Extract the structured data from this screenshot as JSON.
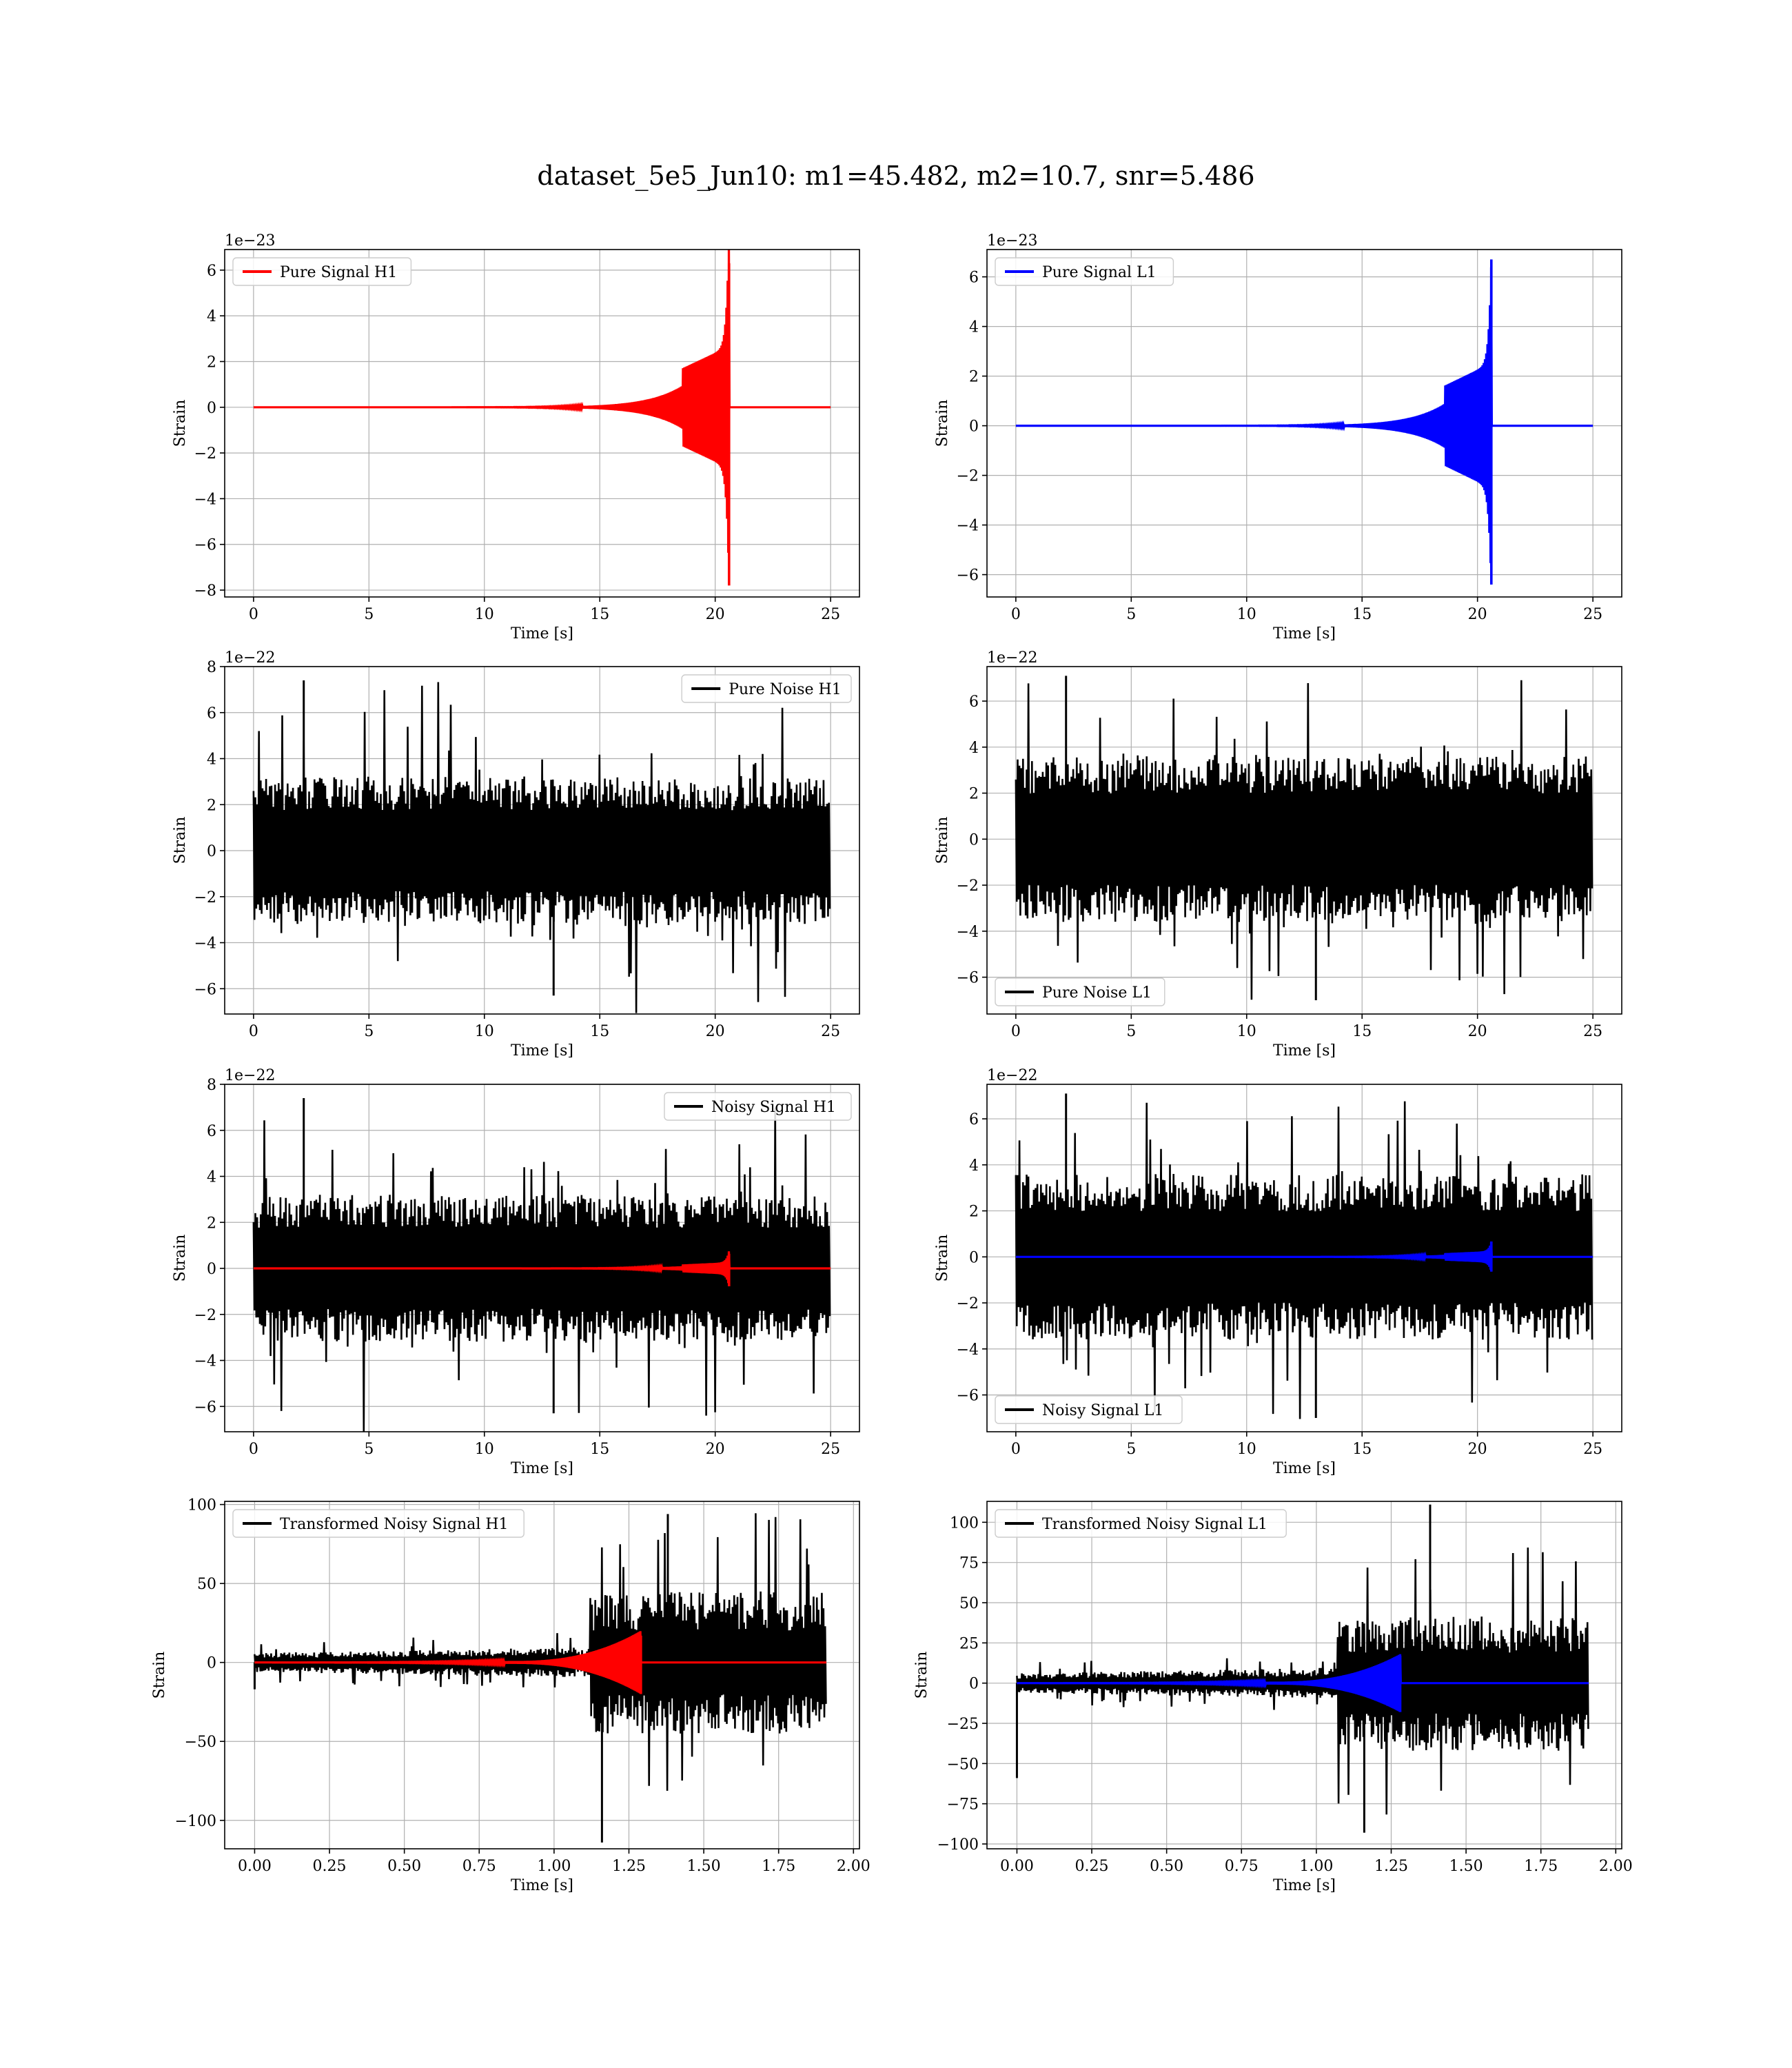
{
  "figure": {
    "title": "dataset_5e5_Jun10: m1=45.482, m2=10.7, snr=5.486"
  },
  "colors": {
    "h1_signal": "#ff0000",
    "l1_signal": "#0000ff",
    "noise": "#000000"
  },
  "chart_data": [
    {
      "id": "pure-signal-h1",
      "type": "line",
      "kind": "chirp",
      "xlabel": "Time [s]",
      "ylabel": "Strain",
      "offset_label": "1e−23",
      "xlim": [
        -1.25,
        26.25
      ],
      "ylim": [
        -8.3,
        6.9
      ],
      "xticks": [
        0,
        5,
        10,
        15,
        20,
        25
      ],
      "xtick_labels": [
        "0",
        "5",
        "10",
        "15",
        "20",
        "25"
      ],
      "yticks": [
        -8,
        -6,
        -4,
        -2,
        0,
        2,
        4,
        6
      ],
      "ytick_labels": [
        "−8",
        "−6",
        "−4",
        "−2",
        "0",
        "2",
        "4",
        "6"
      ],
      "legend": {
        "position": "upper-left",
        "label": "Pure Signal H1"
      },
      "series": [
        {
          "name": "Pure Signal H1",
          "color": "#ff0000",
          "x_range": [
            0,
            25
          ],
          "merger_time": 20.6,
          "peak_max": 6.3,
          "peak_min": -7.8,
          "plateau_amplitude": 1.9,
          "plateau_start": 18.6
        }
      ]
    },
    {
      "id": "pure-signal-l1",
      "type": "line",
      "kind": "chirp",
      "xlabel": "Time [s]",
      "ylabel": "Strain",
      "offset_label": "1e−23",
      "xlim": [
        -1.25,
        26.25
      ],
      "ylim": [
        -6.9,
        7.1
      ],
      "xticks": [
        0,
        5,
        10,
        15,
        20,
        25
      ],
      "xtick_labels": [
        "0",
        "5",
        "10",
        "15",
        "20",
        "25"
      ],
      "yticks": [
        -6,
        -4,
        -2,
        0,
        2,
        4,
        6
      ],
      "ytick_labels": [
        "−6",
        "−4",
        "−2",
        "0",
        "2",
        "4",
        "6"
      ],
      "legend": {
        "position": "upper-left",
        "label": "Pure Signal L1"
      },
      "series": [
        {
          "name": "Pure Signal L1",
          "color": "#0000ff",
          "x_range": [
            0,
            25
          ],
          "merger_time": 20.6,
          "peak_max": 6.7,
          "peak_min": -6.4,
          "plateau_amplitude": 1.8,
          "plateau_start": 18.6
        }
      ]
    },
    {
      "id": "pure-noise-h1",
      "type": "line",
      "kind": "noise",
      "xlabel": "Time [s]",
      "ylabel": "Strain",
      "offset_label": "1e−22",
      "xlim": [
        -1.25,
        26.25
      ],
      "ylim": [
        -7.1,
        8.0
      ],
      "xticks": [
        0,
        5,
        10,
        15,
        20,
        25
      ],
      "xtick_labels": [
        "0",
        "5",
        "10",
        "15",
        "20",
        "25"
      ],
      "yticks": [
        -6,
        -4,
        -2,
        0,
        2,
        4,
        6,
        8
      ],
      "ytick_labels": [
        "−6",
        "−4",
        "−2",
        "0",
        "2",
        "4",
        "6",
        "8"
      ],
      "legend": {
        "position": "upper-right",
        "label": "Pure Noise H1"
      },
      "series": [
        {
          "name": "Pure Noise H1",
          "color": "#000000",
          "x_range": [
            0,
            25
          ],
          "band": 3.2,
          "max": 7.4,
          "min": -6.3
        }
      ]
    },
    {
      "id": "pure-noise-l1",
      "type": "line",
      "kind": "noise",
      "xlabel": "Time [s]",
      "ylabel": "Strain",
      "offset_label": "1e−22",
      "xlim": [
        -1.25,
        26.25
      ],
      "ylim": [
        -7.6,
        7.5
      ],
      "xticks": [
        0,
        5,
        10,
        15,
        20,
        25
      ],
      "xtick_labels": [
        "0",
        "5",
        "10",
        "15",
        "20",
        "25"
      ],
      "yticks": [
        -6,
        -4,
        -2,
        0,
        2,
        4,
        6
      ],
      "ytick_labels": [
        "−6",
        "−4",
        "−2",
        "0",
        "2",
        "4",
        "6"
      ],
      "legend": {
        "position": "lower-left",
        "label": "Pure Noise L1"
      },
      "series": [
        {
          "name": "Pure Noise L1",
          "color": "#000000",
          "x_range": [
            0,
            25
          ],
          "band": 3.6,
          "max": 7.1,
          "min": -7.0
        }
      ]
    },
    {
      "id": "noisy-signal-h1",
      "type": "line",
      "kind": "noise+chirp",
      "xlabel": "Time [s]",
      "ylabel": "Strain",
      "offset_label": "1e−22",
      "xlim": [
        -1.25,
        26.25
      ],
      "ylim": [
        -7.1,
        8.0
      ],
      "xticks": [
        0,
        5,
        10,
        15,
        20,
        25
      ],
      "xtick_labels": [
        "0",
        "5",
        "10",
        "15",
        "20",
        "25"
      ],
      "yticks": [
        -6,
        -4,
        -2,
        0,
        2,
        4,
        6,
        8
      ],
      "ytick_labels": [
        "−6",
        "−4",
        "−2",
        "0",
        "2",
        "4",
        "6",
        "8"
      ],
      "legend": {
        "position": "upper-right",
        "label": "Noisy Signal H1"
      },
      "series": [
        {
          "name": "Noisy Signal H1",
          "color": "#000000",
          "x_range": [
            0,
            25
          ],
          "band": 3.2,
          "max": 7.4,
          "min": -6.3
        },
        {
          "color": "#ff0000",
          "x_range": [
            0,
            25
          ],
          "merger_time": 20.6,
          "peak_max": 0.63,
          "peak_min": -0.78,
          "plateau_amplitude": 0.19,
          "plateau_start": 18.6
        }
      ]
    },
    {
      "id": "noisy-signal-l1",
      "type": "line",
      "kind": "noise+chirp",
      "xlabel": "Time [s]",
      "ylabel": "Strain",
      "offset_label": "1e−22",
      "xlim": [
        -1.25,
        26.25
      ],
      "ylim": [
        -7.6,
        7.5
      ],
      "xticks": [
        0,
        5,
        10,
        15,
        20,
        25
      ],
      "xtick_labels": [
        "0",
        "5",
        "10",
        "15",
        "20",
        "25"
      ],
      "yticks": [
        -6,
        -4,
        -2,
        0,
        2,
        4,
        6
      ],
      "ytick_labels": [
        "−6",
        "−4",
        "−2",
        "0",
        "2",
        "4",
        "6"
      ],
      "legend": {
        "position": "lower-left",
        "label": "Noisy Signal L1"
      },
      "series": [
        {
          "name": "Noisy Signal L1",
          "color": "#000000",
          "x_range": [
            0,
            25
          ],
          "band": 3.6,
          "max": 7.1,
          "min": -7.0
        },
        {
          "color": "#0000ff",
          "x_range": [
            0,
            25
          ],
          "merger_time": 20.6,
          "peak_max": 0.67,
          "peak_min": -0.64,
          "plateau_amplitude": 0.18,
          "plateau_start": 18.6
        }
      ]
    },
    {
      "id": "transformed-noisy-signal-h1",
      "type": "line",
      "kind": "whitened",
      "xlabel": "Time [s]",
      "ylabel": "Strain",
      "offset_label": "",
      "xlim": [
        -0.1,
        2.02
      ],
      "ylim": [
        -118,
        102
      ],
      "xticks": [
        0,
        0.25,
        0.5,
        0.75,
        1.0,
        1.25,
        1.5,
        1.75,
        2.0
      ],
      "xtick_labels": [
        "0.00",
        "0.25",
        "0.50",
        "0.75",
        "1.00",
        "1.25",
        "1.50",
        "1.75",
        "2.00"
      ],
      "yticks": [
        -100,
        -50,
        0,
        50,
        100
      ],
      "ytick_labels": [
        "−100",
        "−50",
        "0",
        "50",
        "100"
      ],
      "legend": {
        "position": "upper-left",
        "label": "Transformed Noisy Signal H1"
      },
      "series": [
        {
          "name": "Transformed Noisy Signal H1",
          "color": "#000000",
          "x_range": [
            0,
            1.91
          ],
          "quiet_band": 6,
          "loud_start": 1.12,
          "loud_band": 45,
          "max": 94,
          "min": -114,
          "start_spike": -17
        },
        {
          "color": "#ff0000",
          "x_range": [
            0,
            1.91
          ],
          "merger_time": 1.29,
          "peak_max": 17,
          "peak_min": -20,
          "chirp_start": 0.85
        }
      ]
    },
    {
      "id": "transformed-noisy-signal-l1",
      "type": "line",
      "kind": "whitened",
      "xlabel": "Time [s]",
      "ylabel": "Strain",
      "offset_label": "",
      "xlim": [
        -0.1,
        2.02
      ],
      "ylim": [
        -103,
        113
      ],
      "xticks": [
        0,
        0.25,
        0.5,
        0.75,
        1.0,
        1.25,
        1.5,
        1.75,
        2.0
      ],
      "xtick_labels": [
        "0.00",
        "0.25",
        "0.50",
        "0.75",
        "1.00",
        "1.25",
        "1.50",
        "1.75",
        "2.00"
      ],
      "yticks": [
        -100,
        -75,
        -50,
        -25,
        0,
        25,
        50,
        75,
        100
      ],
      "ytick_labels": [
        "−100",
        "−75",
        "−50",
        "−25",
        "0",
        "25",
        "50",
        "75",
        "100"
      ],
      "legend": {
        "position": "upper-left",
        "label": "Transformed Noisy Signal L1"
      },
      "series": [
        {
          "name": "Transformed Noisy Signal L1",
          "color": "#000000",
          "x_range": [
            0,
            1.91
          ],
          "quiet_band": 6,
          "loud_start": 1.07,
          "loud_band": 42,
          "max": 111,
          "min": -93,
          "start_spike": -59
        },
        {
          "color": "#0000ff",
          "x_range": [
            0,
            1.91
          ],
          "merger_time": 1.28,
          "peak_max": 17,
          "peak_min": -18,
          "chirp_start": 0.85
        }
      ]
    }
  ]
}
